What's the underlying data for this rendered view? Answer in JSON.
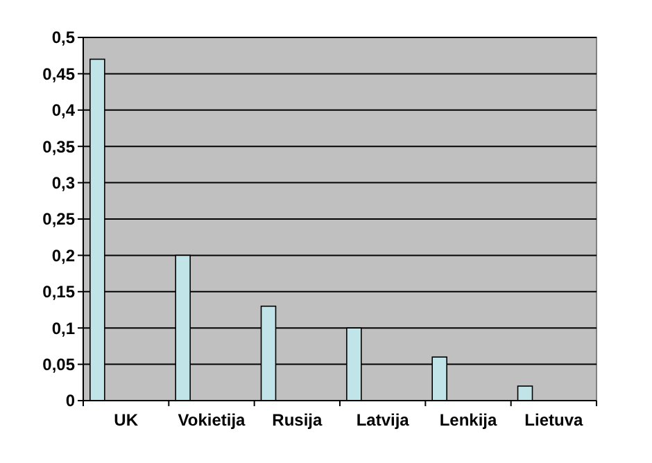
{
  "chart_data": {
    "type": "bar",
    "categories": [
      "UK",
      "Vokietija",
      "Rusija",
      "Latvija",
      "Lenkija",
      "Lietuva"
    ],
    "values": [
      0.47,
      0.2,
      0.13,
      0.1,
      0.06,
      0.02
    ],
    "color": "#c0e4e8",
    "ylim": [
      0,
      0.5
    ],
    "yticks": [
      0,
      {
        "value": 0.05,
        "label": "0,05"
      },
      {
        "value": 0.1,
        "label": "0,1"
      },
      {
        "value": 0.15,
        "label": "0,15"
      },
      {
        "value": 0.2,
        "label": "0,2"
      },
      {
        "value": 0.25,
        "label": "0,25"
      },
      {
        "value": 0.3,
        "label": "0,3"
      },
      {
        "value": 0.35,
        "label": "0,35"
      },
      {
        "value": 0.4,
        "label": "0,4"
      },
      {
        "value": 0.45,
        "label": "0,45"
      },
      {
        "value": 0.5,
        "label": "0,5"
      }
    ],
    "grid": "y"
  }
}
